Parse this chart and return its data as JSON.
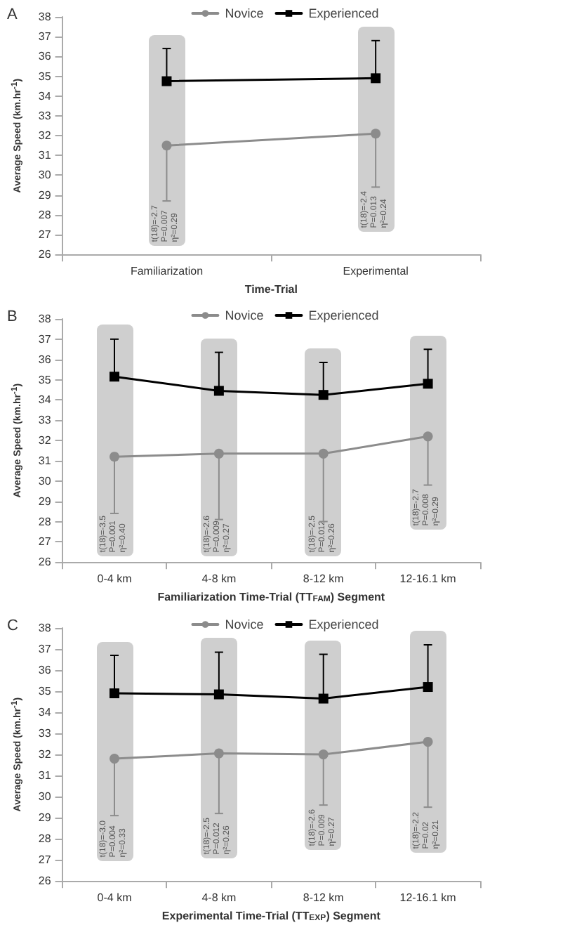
{
  "chart_data": [
    {
      "type": "line",
      "title": "A",
      "xlabel": "Time-Trial",
      "ylabel": "Average Speed (km.hr$^{-1}$)",
      "categories": [
        "Familiarization",
        "Experimental"
      ],
      "ylim": [
        26,
        38
      ],
      "yticks": [
        26,
        27,
        28,
        29,
        30,
        31,
        32,
        33,
        34,
        35,
        36,
        37,
        38
      ],
      "grid": false,
      "legend": "top",
      "series": [
        {
          "name": "Novice",
          "color": "#8c8c8c",
          "marker": "circle",
          "values": [
            31.5,
            32.1
          ],
          "errors": [
            [
              28.7,
              31.5
            ],
            [
              29.4,
              32.1
            ]
          ]
        },
        {
          "name": "Experienced",
          "color": "#000000",
          "marker": "square",
          "values": [
            34.75,
            34.9
          ],
          "errors": [
            [
              34.75,
              36.4
            ],
            [
              34.9,
              36.8
            ]
          ]
        }
      ],
      "annotations": [
        "t(18)=-2.7\nP=0.007\nη²=0.29",
        "t(18)=-2.4\nP=0.013\nη²=0.24"
      ]
    },
    {
      "type": "line",
      "title": "B",
      "xlabel": "Familiarization Time-Trial (TT$_{FAM}$) Segment",
      "ylabel": "Average Speed (km.hr$^{-1}$)",
      "categories": [
        "0-4 km",
        "4-8 km",
        "8-12 km",
        "12-16.1 km"
      ],
      "ylim": [
        26,
        38
      ],
      "yticks": [
        26,
        27,
        28,
        29,
        30,
        31,
        32,
        33,
        34,
        35,
        36,
        37,
        38
      ],
      "grid": false,
      "legend": "top",
      "series": [
        {
          "name": "Novice",
          "color": "#8c8c8c",
          "marker": "circle",
          "values": [
            31.2,
            31.35,
            31.35,
            32.2
          ],
          "errors": [
            [
              28.4,
              31.2
            ],
            [
              28.1,
              31.35
            ],
            [
              28.0,
              31.35
            ],
            [
              29.8,
              32.2
            ]
          ]
        },
        {
          "name": "Experienced",
          "color": "#000000",
          "marker": "square",
          "values": [
            35.15,
            34.45,
            34.25,
            34.8
          ],
          "errors": [
            [
              35.15,
              37.0
            ],
            [
              34.45,
              36.35
            ],
            [
              34.25,
              35.85
            ],
            [
              34.8,
              36.5
            ]
          ]
        }
      ],
      "annotations": [
        "t(18)=-3.5\nP=0.001\nη²=0.40",
        "t(18)=-2.6\nP=0.009\nη²=0.27",
        "t(18)=-2.5\nP=0.012\nη²=0.26",
        "t(18)=-2.7\nP=0.008\nη²=0.29"
      ]
    },
    {
      "type": "line",
      "title": "C",
      "xlabel": "Experimental Time-Trial (TT$_{EXP}$) Segment",
      "ylabel": "Average Speed (km.hr$^{-1}$)",
      "categories": [
        "0-4 km",
        "4-8 km",
        "8-12 km",
        "12-16.1 km"
      ],
      "ylim": [
        26,
        38
      ],
      "yticks": [
        26,
        27,
        28,
        29,
        30,
        31,
        32,
        33,
        34,
        35,
        36,
        37,
        38
      ],
      "grid": false,
      "legend": "top",
      "series": [
        {
          "name": "Novice",
          "color": "#8c8c8c",
          "marker": "circle",
          "values": [
            31.8,
            32.05,
            32.0,
            32.6
          ],
          "errors": [
            [
              29.1,
              31.8
            ],
            [
              29.2,
              32.05
            ],
            [
              29.6,
              32.0
            ],
            [
              29.5,
              32.6
            ]
          ]
        },
        {
          "name": "Experienced",
          "color": "#000000",
          "marker": "square",
          "values": [
            34.9,
            34.85,
            34.65,
            35.2
          ],
          "errors": [
            [
              34.9,
              36.7
            ],
            [
              34.85,
              36.85
            ],
            [
              34.65,
              36.75
            ],
            [
              35.2,
              37.2
            ]
          ]
        }
      ],
      "annotations": [
        "t(18)=-3.0\nP=0.004\nη²=0.33",
        "t(18)=-2.5\nP=0.012\nη²=0.26",
        "t(18)=-2.6\nP=0.009\nη²=0.27",
        "t(18)=-2.2\nP=0.02\nη²=0.21"
      ]
    }
  ]
}
